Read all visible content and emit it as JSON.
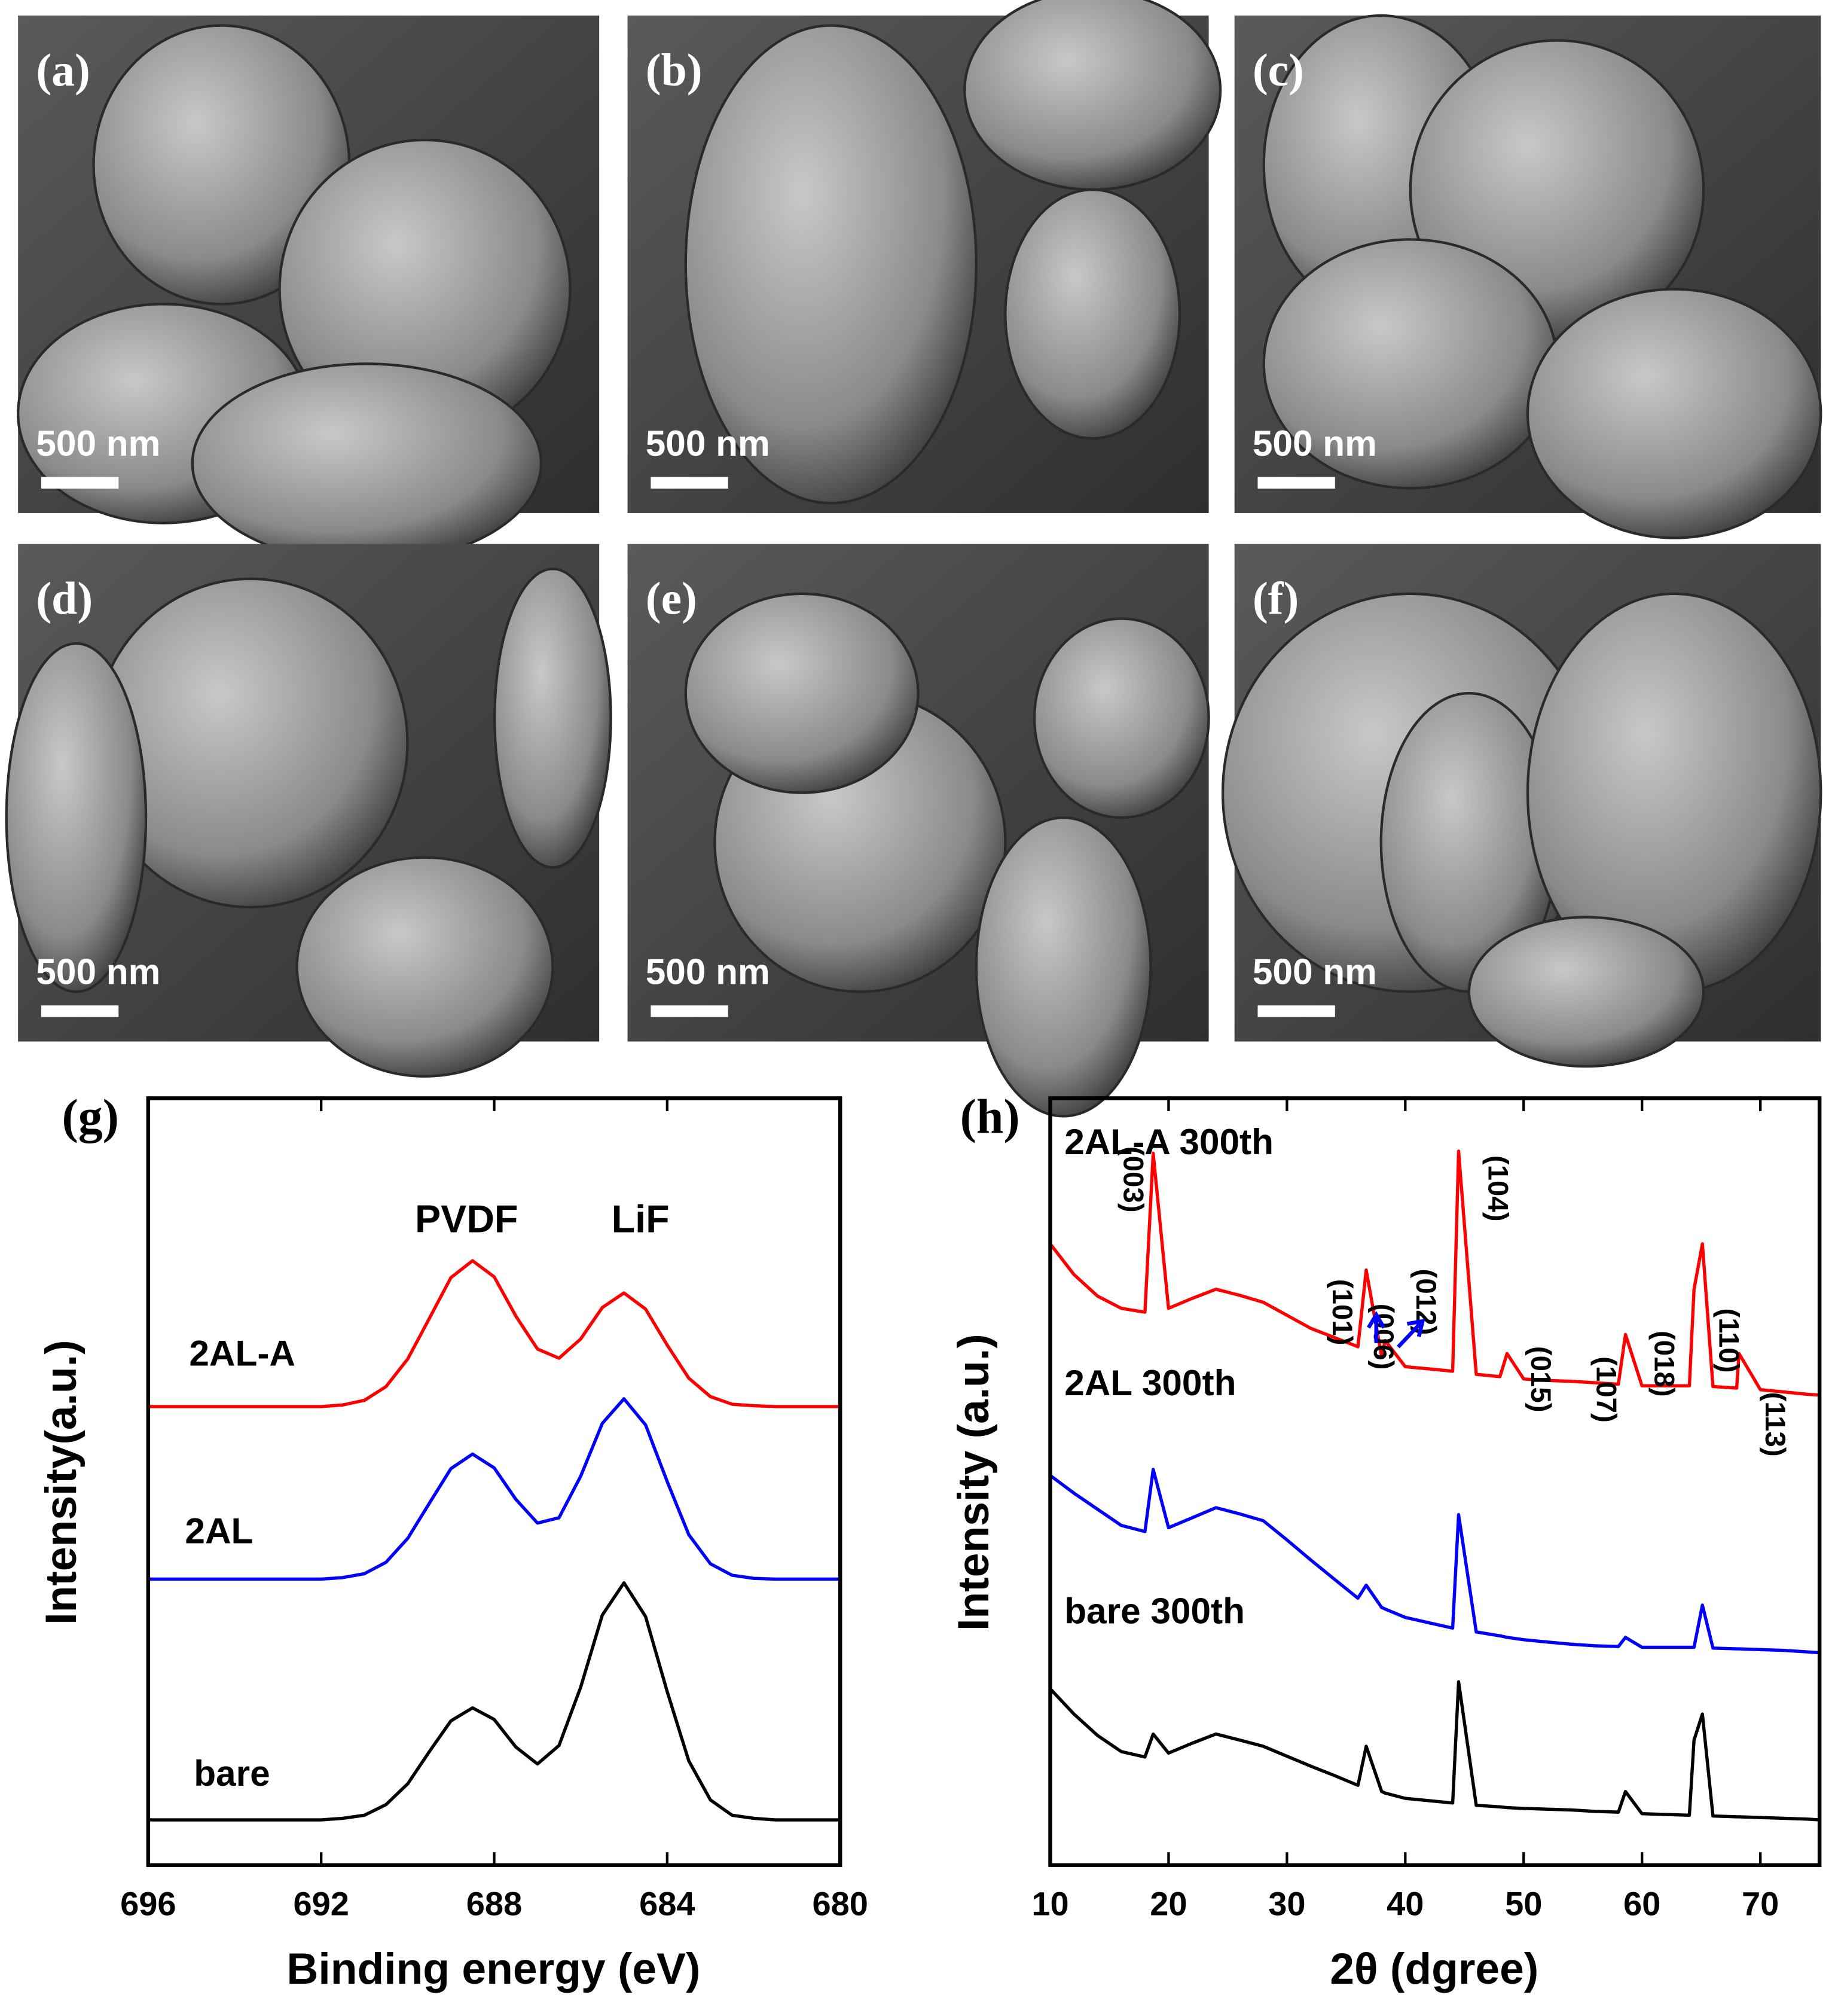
{
  "panels": [
    {
      "label": "(a)",
      "scale_bar": "500 nm"
    },
    {
      "label": "(b)",
      "scale_bar": "500 nm"
    },
    {
      "label": "(c)",
      "scale_bar": "500 nm"
    },
    {
      "label": "(d)",
      "scale_bar": "500 nm"
    },
    {
      "label": "(e)",
      "scale_bar": "500 nm"
    },
    {
      "label": "(f)",
      "scale_bar": "500 nm"
    }
  ],
  "chart_data": [
    {
      "type": "line",
      "label": "(g)",
      "xlabel": "Binding energy (eV)",
      "ylabel": "Intensity(a.u.)",
      "annotations": [
        "PVDF",
        "LiF"
      ],
      "xlim": [
        696,
        680
      ],
      "xticks": [
        696,
        692,
        688,
        684,
        680
      ],
      "ylim": [
        0,
        100
      ],
      "x": [
        696,
        695.5,
        695,
        694.5,
        694,
        693.5,
        693,
        692.5,
        692,
        691.5,
        691,
        690.5,
        690,
        689.5,
        689,
        688.5,
        688,
        687.5,
        687,
        686.5,
        686,
        685.5,
        685,
        684.5,
        684,
        683.5,
        683,
        682.5,
        682,
        681.5,
        681,
        680.5,
        680
      ],
      "series": [
        {
          "name": "2AL-A",
          "color": "#ff0000",
          "values": [
            59.8,
            59.8,
            59.8,
            59.8,
            59.8,
            59.8,
            59.8,
            59.8,
            59.8,
            60.0,
            60.6,
            62.4,
            66.0,
            71.3,
            76.6,
            78.8,
            76.7,
            71.6,
            67.3,
            66.1,
            68.6,
            72.7,
            74.6,
            72.5,
            67.8,
            63.5,
            61.1,
            60.1,
            59.9,
            59.8,
            59.8,
            59.8,
            59.8
          ]
        },
        {
          "name": "2AL",
          "color": "#0000ff",
          "values": [
            37.3,
            37.3,
            37.3,
            37.3,
            37.3,
            37.3,
            37.3,
            37.3,
            37.3,
            37.5,
            38.0,
            39.5,
            42.6,
            47.2,
            51.7,
            53.6,
            51.8,
            47.7,
            44.6,
            45.3,
            50.7,
            57.6,
            60.8,
            57.4,
            50.0,
            43.1,
            39.3,
            37.8,
            37.4,
            37.3,
            37.3,
            37.3,
            37.3
          ]
        },
        {
          "name": "bare",
          "color": "#000000",
          "values": [
            5.9,
            5.9,
            5.9,
            5.9,
            5.9,
            5.9,
            5.9,
            5.9,
            5.9,
            6.1,
            6.5,
            7.9,
            10.6,
            14.8,
            18.8,
            20.5,
            19.0,
            15.4,
            13.2,
            15.6,
            23.2,
            32.6,
            36.8,
            32.4,
            22.6,
            13.6,
            8.5,
            6.5,
            6.1,
            5.9,
            5.9,
            5.9,
            5.9
          ]
        }
      ]
    },
    {
      "type": "line",
      "label": "(h)",
      "xlabel": "2θ (dgree)",
      "ylabel": "Intensity (a.u.)",
      "annotations": [
        "(003)",
        "(101)",
        "(006)",
        "(012)",
        "(104)",
        "(015)",
        "(107)",
        "(018)",
        "(110)",
        "(113)"
      ],
      "xlim": [
        10,
        75
      ],
      "xticks": [
        10,
        20,
        30,
        40,
        50,
        60,
        70
      ],
      "ylim": [
        0,
        100
      ],
      "x": [
        10,
        12,
        14,
        16,
        18,
        18.7,
        20,
        22,
        24,
        26,
        28,
        30,
        32,
        34,
        36,
        36.7,
        38,
        38.3,
        40,
        42,
        44,
        44.5,
        46,
        48,
        48.6,
        50,
        52,
        54,
        56,
        58,
        58.6,
        60,
        62,
        64,
        64.4,
        65.1,
        66,
        68,
        68.2,
        70,
        72,
        74,
        75
      ],
      "series": [
        {
          "name": "2AL-A 300th",
          "color": "#ff0000",
          "values": [
            81,
            77,
            74.2,
            72.6,
            72.1,
            92.8,
            72.6,
            73.9,
            75.1,
            74.3,
            73.4,
            71.7,
            70,
            68.8,
            67.6,
            77.6,
            66.3,
            68.4,
            65,
            64.7,
            64.4,
            93.1,
            64,
            63.7,
            66.7,
            63.4,
            63.2,
            63.1,
            62.9,
            62.7,
            69.2,
            62.5,
            62.5,
            62.5,
            75.1,
            81,
            62.4,
            62.2,
            66.7,
            62,
            61.7,
            61.4,
            61.3
          ]
        },
        {
          "name": "2AL 300th",
          "color": "#0000ff",
          "values": [
            50.8,
            48.5,
            46.4,
            44.3,
            43.5,
            51.6,
            44,
            45.3,
            46.6,
            45.8,
            44.9,
            42.4,
            39.8,
            37.3,
            34.8,
            36.5,
            33.6,
            33.4,
            32.3,
            31.6,
            30.9,
            45.7,
            30.4,
            29.9,
            29.7,
            29.4,
            29.1,
            28.8,
            28.6,
            28.5,
            29.7,
            28.4,
            28.4,
            28.4,
            28.4,
            33.9,
            28.3,
            28.2,
            28.2,
            28.1,
            28,
            27.8,
            27.7
          ]
        },
        {
          "name": "bare 300th",
          "color": "#000000",
          "values": [
            23,
            19.7,
            16.9,
            14.8,
            14.1,
            17.1,
            14.6,
            15.9,
            17.1,
            16.3,
            15.5,
            14.2,
            12.9,
            11.7,
            10.4,
            15.5,
            9.6,
            9.4,
            8.7,
            8.4,
            8.1,
            23.9,
            7.8,
            7.6,
            7.5,
            7.4,
            7.3,
            7.2,
            7,
            6.9,
            9.6,
            6.7,
            6.6,
            6.5,
            16.3,
            19.7,
            6.4,
            6.3,
            6.3,
            6.2,
            6.1,
            6,
            5.9
          ]
        }
      ]
    }
  ]
}
